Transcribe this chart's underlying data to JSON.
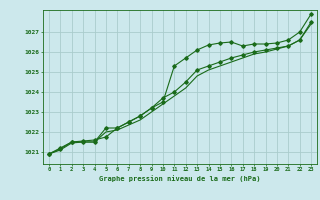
{
  "title": "Graphe pression niveau de la mer (hPa)",
  "bg_color": "#cce8ec",
  "grid_color": "#aacccc",
  "line_color": "#1a6b1a",
  "x_ticks": [
    0,
    1,
    2,
    3,
    4,
    5,
    6,
    7,
    8,
    9,
    10,
    11,
    12,
    13,
    14,
    15,
    16,
    17,
    18,
    19,
    20,
    21,
    22,
    23
  ],
  "y_ticks": [
    1021,
    1022,
    1023,
    1024,
    1025,
    1026,
    1027
  ],
  "ylim": [
    1020.4,
    1028.1
  ],
  "xlim": [
    -0.5,
    23.5
  ],
  "line1": [
    1020.9,
    1021.2,
    1021.5,
    1021.55,
    1021.6,
    1021.75,
    1022.2,
    1022.5,
    1022.8,
    1023.2,
    1023.5,
    1025.3,
    1025.7,
    1026.1,
    1026.35,
    1026.45,
    1026.5,
    1026.3,
    1026.4,
    1026.4,
    1026.45,
    1026.6,
    1027.0,
    1027.9
  ],
  "line2": [
    1020.9,
    1021.15,
    1021.5,
    1021.5,
    1021.5,
    1022.2,
    1022.2,
    1022.5,
    1022.8,
    1023.2,
    1023.7,
    1024.0,
    1024.5,
    1025.1,
    1025.3,
    1025.5,
    1025.7,
    1025.85,
    1026.0,
    1026.1,
    1026.2,
    1026.3,
    1026.6,
    1027.5
  ],
  "line3": [
    1020.9,
    1021.1,
    1021.45,
    1021.5,
    1021.5,
    1022.0,
    1022.1,
    1022.35,
    1022.6,
    1023.0,
    1023.4,
    1023.8,
    1024.2,
    1024.8,
    1025.1,
    1025.3,
    1025.5,
    1025.7,
    1025.9,
    1026.0,
    1026.15,
    1026.3,
    1026.6,
    1027.4
  ]
}
